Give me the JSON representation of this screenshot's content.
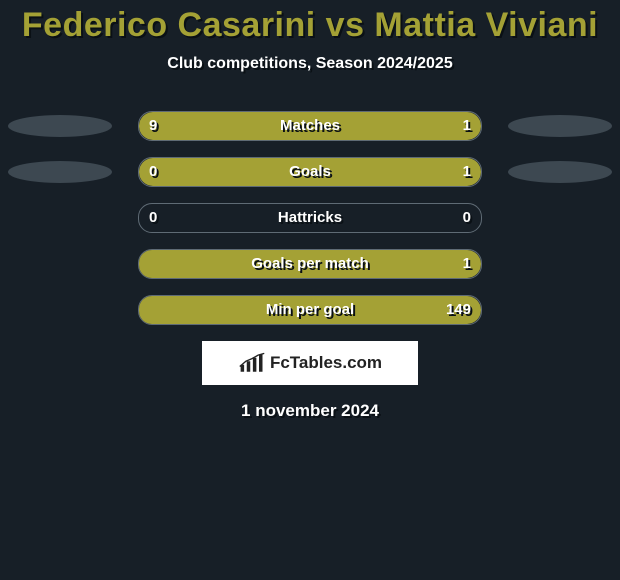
{
  "title": "Federico Casarini vs Mattia Viviani",
  "subtitle": "Club competitions, Season 2024/2025",
  "date": "1 november 2024",
  "logo": {
    "text": "FcTables.com"
  },
  "colors": {
    "background": "#171f27",
    "accent": "#a4a135",
    "ellipse": "#3d4851",
    "border": "#5f6b75",
    "text": "#ffffff"
  },
  "fonts": {
    "title_size": 34,
    "subtitle_size": 16,
    "label_size": 15
  },
  "rows": [
    {
      "label": "Matches",
      "left_val": "9",
      "right_val": "1",
      "left_pct": 80,
      "right_pct": 20,
      "show_left_ellipse": true,
      "show_right_ellipse": true
    },
    {
      "label": "Goals",
      "left_val": "0",
      "right_val": "1",
      "left_pct": 18,
      "right_pct": 82,
      "show_left_ellipse": true,
      "show_right_ellipse": true
    },
    {
      "label": "Hattricks",
      "left_val": "0",
      "right_val": "0",
      "left_pct": 0,
      "right_pct": 0,
      "show_left_ellipse": false,
      "show_right_ellipse": false
    },
    {
      "label": "Goals per match",
      "left_val": "",
      "right_val": "1",
      "left_pct": 0,
      "right_pct": 100,
      "show_left_ellipse": false,
      "show_right_ellipse": false
    },
    {
      "label": "Min per goal",
      "left_val": "",
      "right_val": "149",
      "left_pct": 0,
      "right_pct": 100,
      "show_left_ellipse": false,
      "show_right_ellipse": false
    }
  ]
}
